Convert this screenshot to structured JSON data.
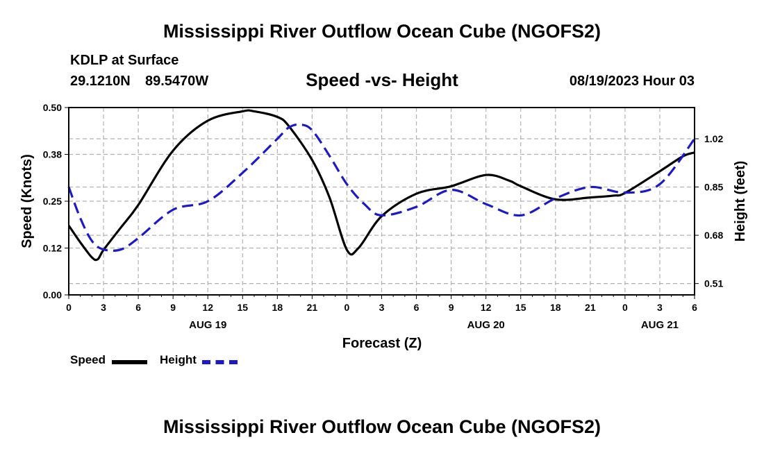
{
  "header": {
    "title": "Mississippi River Outflow Ocean Cube (NGOFS2)",
    "station": "KDLP at Surface",
    "lat": "29.1210N",
    "lon": "89.5470W",
    "timestamp": "08/19/2023 Hour 03"
  },
  "footer": {
    "title": "Mississippi River Outflow Ocean Cube (NGOFS2)"
  },
  "legend": {
    "speed_label": "Speed",
    "height_label": "Height"
  },
  "colors": {
    "speed": "#000000",
    "height": "#1a1acc",
    "grid": "#b0b0b0"
  },
  "chart_data": {
    "type": "line",
    "title": "Speed -vs- Height",
    "xlabel": "Forecast (Z)",
    "ylabel_left": "Speed (Knots)",
    "ylabel_right": "Height (feet)",
    "x_unit": "hours since 08/19 00Z",
    "xlim": [
      0,
      54
    ],
    "ylim_left": [
      0.0,
      0.5
    ],
    "ylim_right": [
      0.47,
      1.13
    ],
    "x_ticks": [
      0,
      3,
      6,
      9,
      12,
      15,
      18,
      21,
      24,
      27,
      30,
      33,
      36,
      39,
      42,
      45,
      48,
      51,
      54
    ],
    "x_tick_labels": [
      "0",
      "3",
      "6",
      "9",
      "12",
      "15",
      "18",
      "21",
      "0",
      "3",
      "6",
      "9",
      "12",
      "15",
      "18",
      "21",
      "0",
      "3",
      "6"
    ],
    "date_labels": [
      {
        "x": 12,
        "label": "AUG 19"
      },
      {
        "x": 36,
        "label": "AUG 20"
      },
      {
        "x": 51,
        "label": "AUG 21"
      }
    ],
    "y_left_ticks": [
      0.0,
      0.125,
      0.25,
      0.375,
      0.5
    ],
    "y_left_tick_labels": [
      "0.00",
      "0.12",
      "0.25",
      "0.38",
      "0.50"
    ],
    "y_right_ticks": [
      0.51,
      0.68,
      0.85,
      1.02
    ],
    "y_right_tick_labels": [
      "0.51",
      "0.68",
      "0.85",
      "1.02"
    ],
    "series": [
      {
        "name": "Speed",
        "axis": "left",
        "style": "solid",
        "x": [
          0,
          1,
          2,
          2.5,
          3,
          4.5,
          6,
          9,
          12,
          15,
          16,
          18,
          19,
          21,
          22.5,
          24,
          25,
          27,
          30,
          33,
          36,
          38,
          39,
          42,
          45,
          47,
          48,
          51,
          53,
          54
        ],
        "values": [
          0.185,
          0.14,
          0.1,
          0.095,
          0.12,
          0.18,
          0.24,
          0.385,
          0.465,
          0.49,
          0.49,
          0.475,
          0.45,
          0.36,
          0.26,
          0.12,
          0.125,
          0.21,
          0.27,
          0.29,
          0.32,
          0.305,
          0.29,
          0.255,
          0.26,
          0.265,
          0.272,
          0.33,
          0.37,
          0.38
        ]
      },
      {
        "name": "Height",
        "axis": "right",
        "style": "dashed",
        "x": [
          0,
          1,
          2,
          3,
          4.5,
          6,
          9,
          12,
          15,
          18,
          19,
          20,
          21,
          22.5,
          24,
          25.5,
          27,
          30,
          33,
          36,
          39,
          42,
          45,
          48,
          51,
          54
        ],
        "values": [
          0.85,
          0.74,
          0.66,
          0.63,
          0.63,
          0.67,
          0.77,
          0.8,
          0.9,
          1.02,
          1.06,
          1.07,
          1.05,
          0.96,
          0.86,
          0.79,
          0.75,
          0.78,
          0.84,
          0.79,
          0.75,
          0.81,
          0.85,
          0.83,
          0.86,
          1.02
        ]
      }
    ]
  }
}
